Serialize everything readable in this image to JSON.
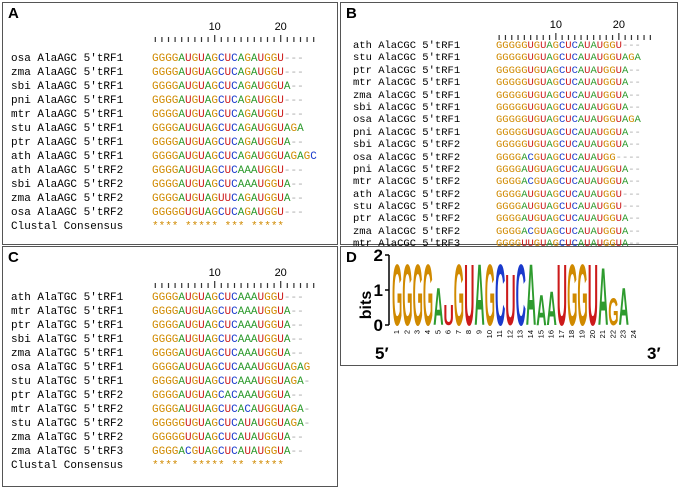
{
  "colors": {
    "G": "#d08a00",
    "A": "#2e9b2e",
    "U": "#cc1a1a",
    "C": "#1a3acc",
    "consensus": "#d08a00",
    "ruler": "#333333"
  },
  "panels": [
    {
      "label": "A",
      "tick_labels": [
        "10",
        "20"
      ],
      "rows": [
        {
          "name": "osa AlaAGC 5'tRF1",
          "seq": "GGGGAUGUAGCUCAGAUGGU---"
        },
        {
          "name": "zma AlaAGC 5'tRF1",
          "seq": "GGGGAUGUAGCUCAGAUGGU---"
        },
        {
          "name": "sbi AlaAGC 5'tRF1",
          "seq": "GGGGAUGUAGCUCAGAUGGUA--"
        },
        {
          "name": "pni AlaAGC 5'tRF1",
          "seq": "GGGGAUGUAGCUCAGAUGGU---"
        },
        {
          "name": "mtr AlaAGC 5'tRF1",
          "seq": "GGGGAUGUAGCUCAGAUGGU---"
        },
        {
          "name": "stu AlaAGC 5'tRF1",
          "seq": "GGGGAUGUAGCUCAGAUGGUAGA"
        },
        {
          "name": "ptr AlaAGC 5'tRF1",
          "seq": "GGGGAUGUAGCUCAGAUGGUA--"
        },
        {
          "name": "ath AlaAGC 5'tRF1",
          "seq": "GGGGAUGUAGCUCAGAUGGUAGAGC"
        },
        {
          "name": "ath AlaAGC 5'tRF2",
          "seq": "GGGGAUGUAGCUCAAAUGGU---"
        },
        {
          "name": "sbi AlaAGC 5'tRF2",
          "seq": "GGGGAUGUAGCUCAAAUGGUA--"
        },
        {
          "name": "zma AlaAGC 5'tRF2",
          "seq": "GGGGAUGUAGUUCAGAUGGUA--"
        },
        {
          "name": "osa AlaAGC 5'tRF2",
          "seq": "GGGGGUGUAGCUCAGAUGGU---"
        }
      ],
      "consensus_label": "Clustal Consensus",
      "consensus": "**** ***** *** *****"
    },
    {
      "label": "B",
      "tick_labels": [
        "10",
        "20"
      ],
      "rows": [
        {
          "name": "ath AlaCGC 5'tRF1",
          "seq": "GGGGGUGUAGCUCAUAUGGU---"
        },
        {
          "name": "stu AlaCGC 5'tRF1",
          "seq": "GGGGGUGUAGCUCAUAUGGUAGA"
        },
        {
          "name": "ptr AlaCGC 5'tRF1",
          "seq": "GGGGGUGUAGCUCAUAUGGUA--"
        },
        {
          "name": "mtr AlaCGC 5'tRF1",
          "seq": "GGGGGUGUAGCUCAUAUGGUA--"
        },
        {
          "name": "zma AlaCGC 5'tRF1",
          "seq": "GGGGGUGUAGCUCAUAUGGUA--"
        },
        {
          "name": "sbi AlaCGC 5'tRF1",
          "seq": "GGGGGUGUAGCUCAUAUGGUA--"
        },
        {
          "name": "osa AlaCGC 5'tRF1",
          "seq": "GGGGGUGUAGCUCAUAUGGUAGA"
        },
        {
          "name": "pni AlaCGC 5'tRF1",
          "seq": "GGGGGUGUAGCUCAUAUGGUA--"
        },
        {
          "name": "sbi AlaCGC 5'tRF2",
          "seq": "GGGGGUGUAGCUCAUAUGGUA--"
        },
        {
          "name": "osa AlaCGC 5'tRF2",
          "seq": "GGGGACGUAGCUCAUAUGG----"
        },
        {
          "name": "pni AlaCGC 5'tRF2",
          "seq": "GGGGAUGUAGCUCAUAUGGUA--"
        },
        {
          "name": "mtr AlaCGC 5'tRF2",
          "seq": "GGGGACGUAGCUCAUAUGGUA--"
        },
        {
          "name": "ath AlaCGC 5'tRF2",
          "seq": "GGGGAUGUAGCUCAUAUGGU---"
        },
        {
          "name": "stu AlaCGC 5'tRF2",
          "seq": "GGGGAUGUAGCUCAUAUGGU---"
        },
        {
          "name": "ptr AlaCGC 5'tRF2",
          "seq": "GGGGAUGUAGCUCAUAUGGUA--"
        },
        {
          "name": "zma AlaCGC 5'tRF2",
          "seq": "GGGGACGUAGCUCAUAUGGUA--"
        },
        {
          "name": "mtr AlaCGC 5'tRF3",
          "seq": "GGGGUUGUAGCUCAUAUGGUA--"
        }
      ],
      "consensus_label": "Clustal Consensus",
      "consensus": "****  ************"
    },
    {
      "label": "C",
      "tick_labels": [
        "10",
        "20"
      ],
      "rows": [
        {
          "name": "ath AlaTGC 5'tRF1",
          "seq": "GGGGAUGUAGCUCAAAUGGU---"
        },
        {
          "name": "mtr AlaTGC 5'tRF1",
          "seq": "GGGGAUGUAGCUCAAAUGGUA--"
        },
        {
          "name": "ptr AlaTGC 5'tRF1",
          "seq": "GGGGAUGUAGCUCAAAUGGUA--"
        },
        {
          "name": "sbi AlaTGC 5'tRF1",
          "seq": "GGGGAUGUAGCUCAAAUGGUA--"
        },
        {
          "name": "zma AlaTGC 5'tRF1",
          "seq": "GGGGAUGUAGCUCAAAUGGUA--"
        },
        {
          "name": "osa AlaTGC 5'tRF1",
          "seq": "GGGGAUGUAGCUCAAAUGGUAGAG"
        },
        {
          "name": "stu AlaTGC 5'tRF1",
          "seq": "GGGGAUGUAGCUCAAAUGGUAGA-"
        },
        {
          "name": "ptr AlaTGC 5'tRF2",
          "seq": "GGGGAUGUAGCACAAAUGGUA--"
        },
        {
          "name": "mtr AlaTGC 5'tRF2",
          "seq": "GGGGAUGUAGCUCACAUGGUAGA-"
        },
        {
          "name": "stu AlaTGC 5'tRF2",
          "seq": "GGGGGUGUAGCUCAUAUGGUAGA-"
        },
        {
          "name": "zma AlaTGC 5'tRF2",
          "seq": "GGGGGUGUAGCUCAUAUGGUA--"
        },
        {
          "name": "zma AlaTGC 5'tRF3",
          "seq": "GGGGACGUAGCUCAUAUGGUA--"
        }
      ],
      "consensus_label": "Clustal Consensus",
      "consensus": "****  ***** ** *****"
    }
  ],
  "logo": {
    "label": "D",
    "ylabel": "bits",
    "yticks": [
      "2",
      "1",
      "0"
    ],
    "end_labels": {
      "left": "5′",
      "right": "3′"
    },
    "positions": [
      "1",
      "2",
      "3",
      "4",
      "5",
      "6",
      "7",
      "8",
      "9",
      "10",
      "11",
      "12",
      "13",
      "14",
      "15",
      "16",
      "17",
      "18",
      "19",
      "20",
      "21",
      "22",
      "23",
      "24"
    ],
    "letters": [
      "G",
      "G",
      "G",
      "G",
      "A",
      "U",
      "G",
      "U",
      "A",
      "G",
      "C",
      "U",
      "C",
      "A",
      "A",
      "A",
      "U",
      "G",
      "G",
      "U",
      "A",
      "G",
      "A",
      ""
    ]
  }
}
